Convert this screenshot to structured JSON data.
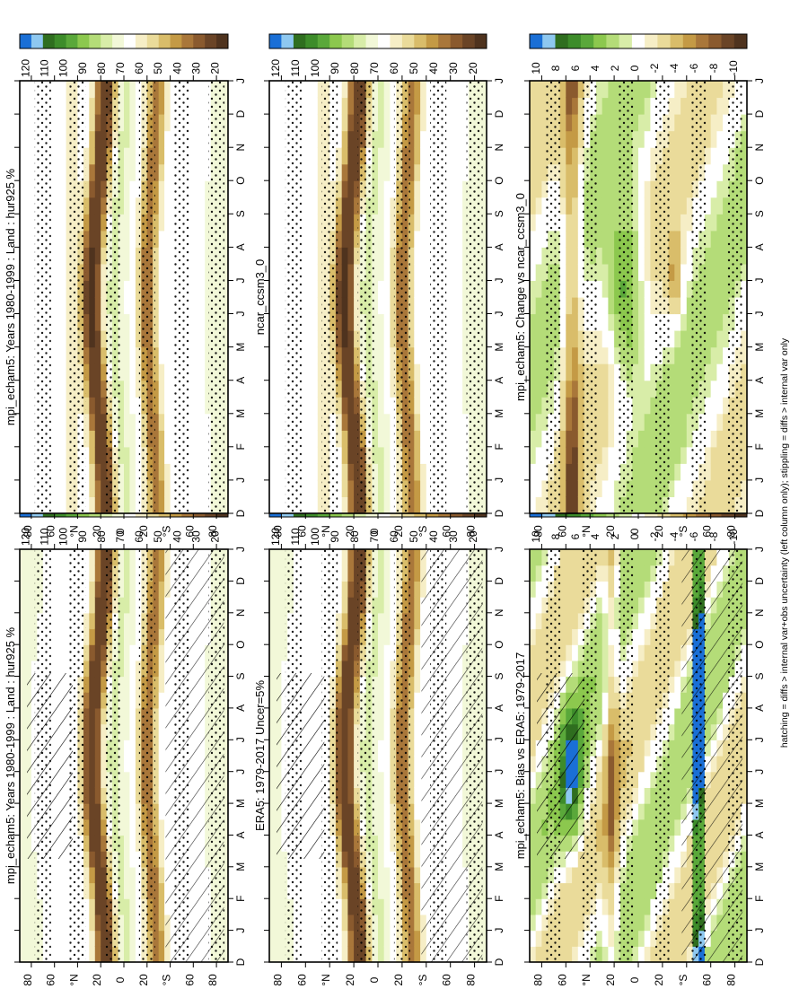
{
  "figure": {
    "footnote": "hatching = diffs > internal var+obs uncertainty (left column only); stippling = diffs > internal var only"
  },
  "chart_data": [
    {
      "type": "heatmap",
      "title": "mpi_echam5: Years 1980-1999 : Land : hur925 %",
      "x_ticks": [
        "D",
        "J",
        "F",
        "M",
        "A",
        "M",
        "J",
        "J",
        "A",
        "S",
        "O",
        "N",
        "D",
        "J"
      ],
      "y_ticks": [
        "80",
        "60",
        "°N",
        "20",
        "0",
        "20",
        "°S",
        "60",
        "80"
      ],
      "colorbar": [
        "120",
        "110",
        "100",
        "90",
        "80",
        "70",
        "60",
        "50",
        "40",
        "30",
        "20"
      ],
      "hatching": true,
      "stippling": true
    },
    {
      "type": "heatmap",
      "title": "mpi_echam5: Years 1980-1999 : Land : hur925 %",
      "x_ticks": [
        "D",
        "J",
        "F",
        "M",
        "A",
        "M",
        "J",
        "J",
        "A",
        "S",
        "O",
        "N",
        "D",
        "J"
      ],
      "y_ticks": [
        "80",
        "60",
        "°N",
        "20",
        "0",
        "20",
        "°S",
        "60",
        "80"
      ],
      "colorbar": [
        "120",
        "110",
        "100",
        "90",
        "80",
        "70",
        "60",
        "50",
        "40",
        "30",
        "20"
      ],
      "hatching": false,
      "stippling": true
    },
    {
      "type": "heatmap",
      "title": "ERA5: 1979-2017 Uncer=5%",
      "x_ticks": [
        "D",
        "J",
        "F",
        "M",
        "A",
        "M",
        "J",
        "J",
        "A",
        "S",
        "O",
        "N",
        "D",
        "J"
      ],
      "y_ticks": [
        "80",
        "60",
        "°N",
        "20",
        "0",
        "20",
        "°S",
        "60",
        "80"
      ],
      "colorbar": [
        "120",
        "110",
        "100",
        "90",
        "80",
        "70",
        "60",
        "50",
        "40",
        "30",
        "20"
      ],
      "hatching": true,
      "stippling": true
    },
    {
      "type": "heatmap",
      "title": "ncar_ccsm3_0",
      "x_ticks": [
        "D",
        "J",
        "F",
        "M",
        "A",
        "M",
        "J",
        "J",
        "A",
        "S",
        "O",
        "N",
        "D",
        "J"
      ],
      "y_ticks": [
        "80",
        "60",
        "°N",
        "20",
        "0",
        "20",
        "°S",
        "60",
        "80"
      ],
      "colorbar": [
        "120",
        "110",
        "100",
        "90",
        "80",
        "70",
        "60",
        "50",
        "40",
        "30",
        "20"
      ],
      "hatching": false,
      "stippling": true
    },
    {
      "type": "heatmap",
      "title": "mpi_echam5: Bias vs ERA5: 1979-2017",
      "x_ticks": [
        "D",
        "J",
        "F",
        "M",
        "A",
        "M",
        "J",
        "J",
        "A",
        "S",
        "O",
        "N",
        "D",
        "J"
      ],
      "y_ticks": [
        "80",
        "60",
        "°N",
        "20",
        "0",
        "20",
        "°S",
        "60",
        "80"
      ],
      "colorbar": [
        "10",
        "8",
        "6",
        "4",
        "2",
        "0",
        "-2",
        "-4",
        "-6",
        "-8",
        "-10"
      ],
      "hatching": true,
      "stippling": true
    },
    {
      "type": "heatmap",
      "title": "mpi_echam5: Change vs ncar_ccsm3_0",
      "x_ticks": [
        "D",
        "J",
        "F",
        "M",
        "A",
        "M",
        "J",
        "J",
        "A",
        "S",
        "O",
        "N",
        "D",
        "J"
      ],
      "y_ticks": [
        "80",
        "60",
        "°N",
        "20",
        "0",
        "20",
        "°S",
        "60",
        "80"
      ],
      "colorbar": [
        "10",
        "8",
        "6",
        "4",
        "2",
        "0",
        "-2",
        "-4",
        "-6",
        "-8",
        "-10"
      ],
      "hatching": false,
      "stippling": true
    }
  ],
  "colors": {
    "abs_scale": [
      "#1a6fd6",
      "#8ec8f0",
      "#2f6e1f",
      "#3d8c2a",
      "#5aa83a",
      "#8cc84e",
      "#b4dc78",
      "#d8eda8",
      "#f2f8d8",
      "#ffffff",
      "#f6eec6",
      "#eadb9a",
      "#d9bd6a",
      "#c49a45",
      "#a9773a",
      "#8a5a2e",
      "#6a4426",
      "#4f331e"
    ],
    "diff_scale": [
      "#1a6fd6",
      "#8ec8f0",
      "#2f6e1f",
      "#3d8c2a",
      "#5aa83a",
      "#8cc84e",
      "#b4dc78",
      "#d8eda8",
      "#ffffff",
      "#f6eec6",
      "#eadb9a",
      "#d9bd6a",
      "#c49a45",
      "#a9773a",
      "#8a5a2e",
      "#6a4426",
      "#4f331e"
    ]
  }
}
